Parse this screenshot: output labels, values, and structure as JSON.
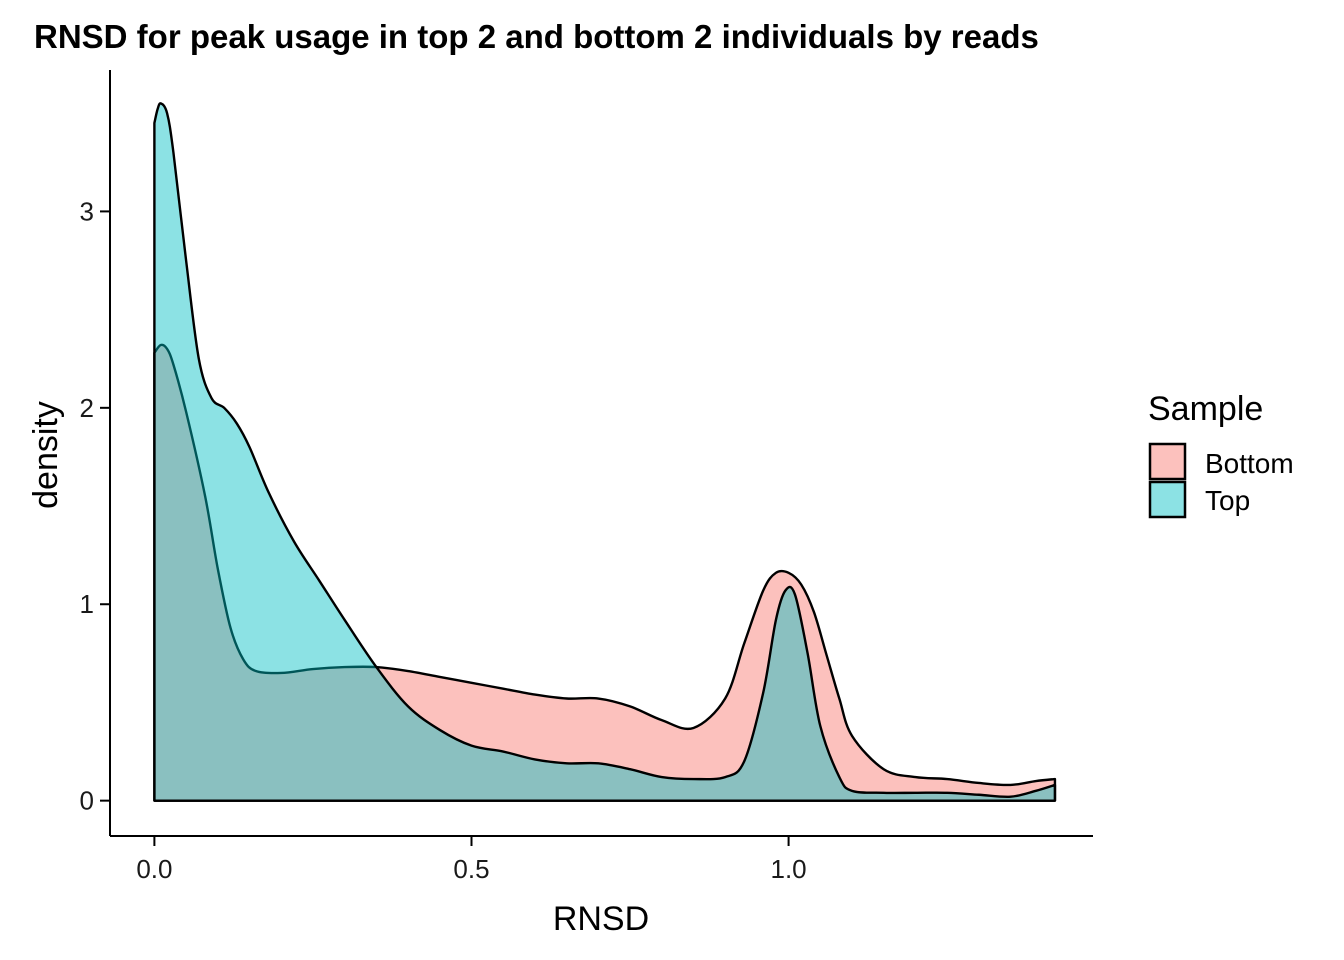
{
  "chart_data": {
    "type": "area",
    "title": "RNSD for peak usage in top 2 and bottom 2 individuals by reads",
    "xlabel": "RNSD",
    "ylabel": "density",
    "xlim": [
      -0.07,
      1.48
    ],
    "ylim": [
      -0.18,
      3.72
    ],
    "xticks": [
      0,
      0.5,
      1
    ],
    "xtick_labels": [
      "0.0",
      "0.5",
      "1.0"
    ],
    "yticks": [
      0,
      1,
      2,
      3
    ],
    "ytick_labels": [
      "0",
      "1",
      "2",
      "3"
    ],
    "grid": false,
    "legend": {
      "title": "Sample",
      "position": "right"
    },
    "series": [
      {
        "name": "Bottom",
        "color": "#F8766D",
        "x": [
          0,
          0.01,
          0.02,
          0.03,
          0.05,
          0.08,
          0.1,
          0.12,
          0.14,
          0.16,
          0.2,
          0.25,
          0.3,
          0.35,
          0.4,
          0.45,
          0.5,
          0.55,
          0.6,
          0.65,
          0.7,
          0.75,
          0.8,
          0.85,
          0.9,
          0.93,
          0.96,
          0.98,
          1.0,
          1.02,
          1.04,
          1.06,
          1.08,
          1.1,
          1.15,
          1.2,
          1.25,
          1.3,
          1.35,
          1.39,
          1.42
        ],
        "y": [
          2.28,
          2.32,
          2.3,
          2.22,
          1.98,
          1.55,
          1.18,
          0.88,
          0.72,
          0.66,
          0.65,
          0.67,
          0.68,
          0.68,
          0.66,
          0.63,
          0.6,
          0.57,
          0.54,
          0.52,
          0.52,
          0.48,
          0.41,
          0.37,
          0.52,
          0.8,
          1.07,
          1.16,
          1.16,
          1.1,
          0.96,
          0.74,
          0.52,
          0.33,
          0.16,
          0.12,
          0.11,
          0.09,
          0.08,
          0.1,
          0.11
        ]
      },
      {
        "name": "Top",
        "color": "#00BFC4",
        "x": [
          0,
          0.005,
          0.01,
          0.02,
          0.03,
          0.05,
          0.07,
          0.09,
          0.11,
          0.13,
          0.15,
          0.18,
          0.22,
          0.26,
          0.3,
          0.35,
          0.4,
          0.45,
          0.5,
          0.55,
          0.6,
          0.65,
          0.7,
          0.75,
          0.8,
          0.85,
          0.9,
          0.93,
          0.96,
          0.98,
          0.995,
          1.01,
          1.03,
          1.05,
          1.08,
          1.1,
          1.15,
          1.2,
          1.25,
          1.3,
          1.35,
          1.39,
          1.42
        ],
        "y": [
          3.45,
          3.52,
          3.55,
          3.5,
          3.3,
          2.75,
          2.25,
          2.05,
          2.0,
          1.92,
          1.8,
          1.57,
          1.32,
          1.12,
          0.92,
          0.68,
          0.48,
          0.36,
          0.28,
          0.25,
          0.21,
          0.19,
          0.19,
          0.16,
          0.12,
          0.11,
          0.12,
          0.2,
          0.55,
          0.92,
          1.07,
          1.05,
          0.75,
          0.38,
          0.12,
          0.05,
          0.04,
          0.04,
          0.04,
          0.03,
          0.02,
          0.05,
          0.08
        ]
      }
    ]
  }
}
